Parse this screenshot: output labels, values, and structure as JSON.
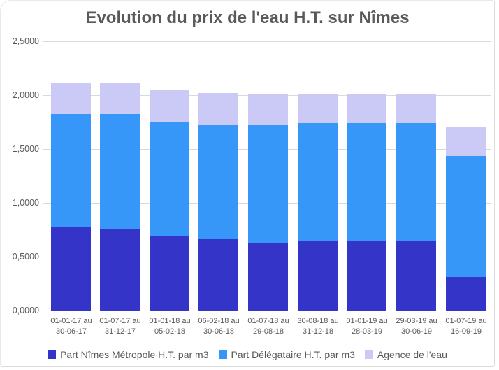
{
  "page": {
    "background": "#ffffff",
    "card_border_color": "#e3e3e3"
  },
  "styles": {
    "title_color": "#595959",
    "axis_text_color": "#595959",
    "grid_color": "#d9d9d9"
  },
  "chart_data": {
    "type": "bar",
    "stacked": true,
    "title": "Evolution du prix de l'eau H.T. sur Nîmes",
    "xlabel": "",
    "ylabel": "",
    "grid": true,
    "legend_position": "bottom",
    "y_axis": {
      "min": 0,
      "max": 2.5,
      "tick_step": 0.5,
      "tick_labels": [
        "0,0000",
        "0,5000",
        "1,0000",
        "1,5000",
        "2,0000",
        "2,5000"
      ]
    },
    "categories": [
      [
        "01-01-17 au",
        "30-06-17"
      ],
      [
        "01-07-17 au",
        "31-12-17"
      ],
      [
        "01-01-18 au",
        "05-02-18"
      ],
      [
        "06-02-18 au",
        "30-06-18"
      ],
      [
        "01-07-18 au",
        "29-08-18"
      ],
      [
        "30-08-18 au",
        "31-12-18"
      ],
      [
        "01-01-19 au",
        "28-03-19"
      ],
      [
        "29-03-19 au",
        "30-06-19"
      ],
      [
        "01-07-19 au",
        "16-09-19"
      ]
    ],
    "series": [
      {
        "name": "Part Nîmes Métropole H.T. par m3",
        "color": "#3434c9",
        "values": [
          0.78,
          0.755,
          0.69,
          0.66,
          0.625,
          0.65,
          0.65,
          0.65,
          0.31
        ]
      },
      {
        "name": "Part Délégataire H.T. par m3",
        "color": "#3797f8",
        "values": [
          1.045,
          1.07,
          1.065,
          1.06,
          1.095,
          1.09,
          1.09,
          1.09,
          1.125
        ]
      },
      {
        "name": "Agence de l'eau",
        "color": "#cbcaf7",
        "values": [
          0.295,
          0.295,
          0.29,
          0.297,
          0.295,
          0.275,
          0.275,
          0.275,
          0.272
        ]
      }
    ]
  }
}
